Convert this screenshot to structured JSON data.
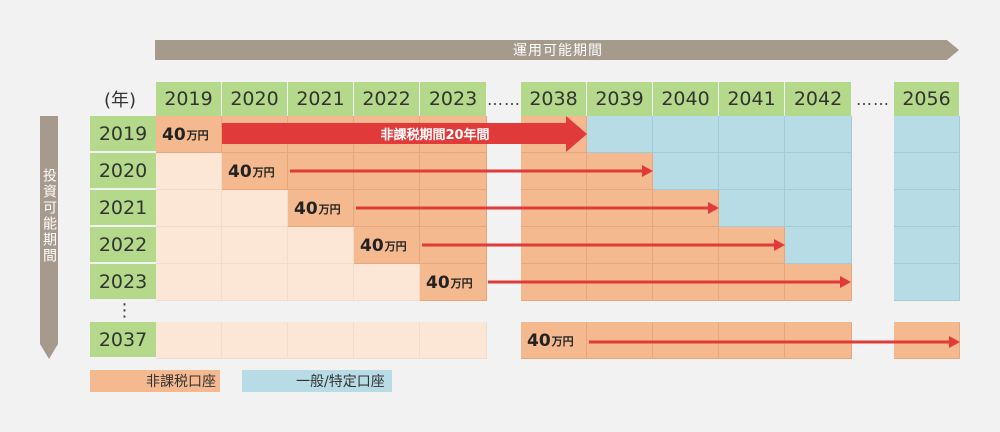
{
  "top_bar": {
    "label": "運用可能期間"
  },
  "side_bar": {
    "label": "投資可能期間"
  },
  "year_unit": "(年)",
  "header_years": [
    "2019",
    "2020",
    "2021",
    "2022",
    "2023",
    "2038",
    "2039",
    "2040",
    "2041",
    "2042",
    "2056"
  ],
  "ellipsis_h": "……",
  "ellipsis_v": "⋮",
  "row_years": [
    "2019",
    "2020",
    "2021",
    "2022",
    "2023",
    "2037"
  ],
  "amount": {
    "value": "40",
    "unit": "万円"
  },
  "main_arrow_label": "非課税期間20年間",
  "legend": [
    {
      "label": "非課税口座",
      "color": "#f5b98f"
    },
    {
      "label": "一般/特定口座",
      "color": "#b8dce6"
    }
  ],
  "colors": {
    "light": "#fce6d6",
    "orange": "#f5b98f",
    "blue": "#b8dce6",
    "green": "#b5d98a",
    "arrow": "#e03a3a",
    "bar": "#a69a8c"
  }
}
